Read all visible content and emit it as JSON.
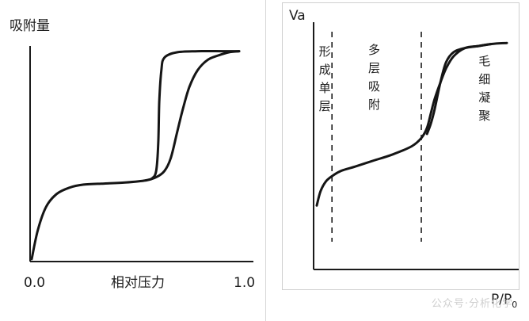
{
  "chart_data": [
    {
      "type": "line",
      "ylabel": "吸附量",
      "xlabel": "相对压力",
      "x_ticks": [
        "0.0",
        "1.0"
      ],
      "xlim": [
        0.0,
        1.0
      ],
      "ylim": [
        0.0,
        1.0
      ],
      "series": [
        {
          "x": [
            0.0,
            0.03,
            0.07,
            0.12,
            0.18,
            0.25,
            0.35,
            0.45,
            0.55,
            0.6,
            0.64,
            0.67,
            0.7,
            0.73,
            0.76,
            0.8,
            0.85,
            0.9,
            0.95,
            1.0
          ],
          "values": [
            0.0,
            0.14,
            0.25,
            0.31,
            0.34,
            0.355,
            0.36,
            0.365,
            0.375,
            0.39,
            0.42,
            0.48,
            0.6,
            0.72,
            0.82,
            0.9,
            0.95,
            0.97,
            0.985,
            0.99
          ]
        },
        {
          "x": [
            1.0,
            0.92,
            0.8,
            0.7,
            0.64,
            0.625,
            0.615,
            0.61,
            0.6,
            0.58,
            0.55
          ],
          "values": [
            0.99,
            0.99,
            0.99,
            0.985,
            0.96,
            0.9,
            0.75,
            0.55,
            0.42,
            0.385,
            0.375
          ]
        }
      ]
    },
    {
      "type": "line",
      "ylabel": "Va",
      "xlabel": "P/P",
      "xlabel_sub": "0",
      "xlim": [
        0.0,
        1.0
      ],
      "ylim": [
        0.0,
        1.0
      ],
      "dividers_x": [
        0.08,
        0.55
      ],
      "region_labels": [
        {
          "text": "形成单层",
          "x": 0.04
        },
        {
          "text": "多层吸附",
          "x": 0.3
        },
        {
          "text": "毛细凝聚",
          "x": 0.88
        }
      ],
      "series": [
        {
          "x": [
            0.0,
            0.02,
            0.05,
            0.09,
            0.13,
            0.2,
            0.3,
            0.4,
            0.5,
            0.55,
            0.58,
            0.6,
            0.62,
            0.65,
            0.68,
            0.72,
            0.78,
            0.85,
            0.92,
            1.0
          ],
          "values": [
            0.15,
            0.22,
            0.27,
            0.3,
            0.32,
            0.34,
            0.37,
            0.4,
            0.44,
            0.48,
            0.53,
            0.6,
            0.67,
            0.75,
            0.82,
            0.88,
            0.92,
            0.93,
            0.94,
            0.945
          ]
        },
        {
          "x": [
            0.92,
            0.85,
            0.78,
            0.72,
            0.68,
            0.65,
            0.62,
            0.6,
            0.58
          ],
          "values": [
            0.94,
            0.93,
            0.92,
            0.9,
            0.85,
            0.75,
            0.62,
            0.55,
            0.5
          ]
        }
      ]
    }
  ],
  "watermark": "公众号·分析化学"
}
